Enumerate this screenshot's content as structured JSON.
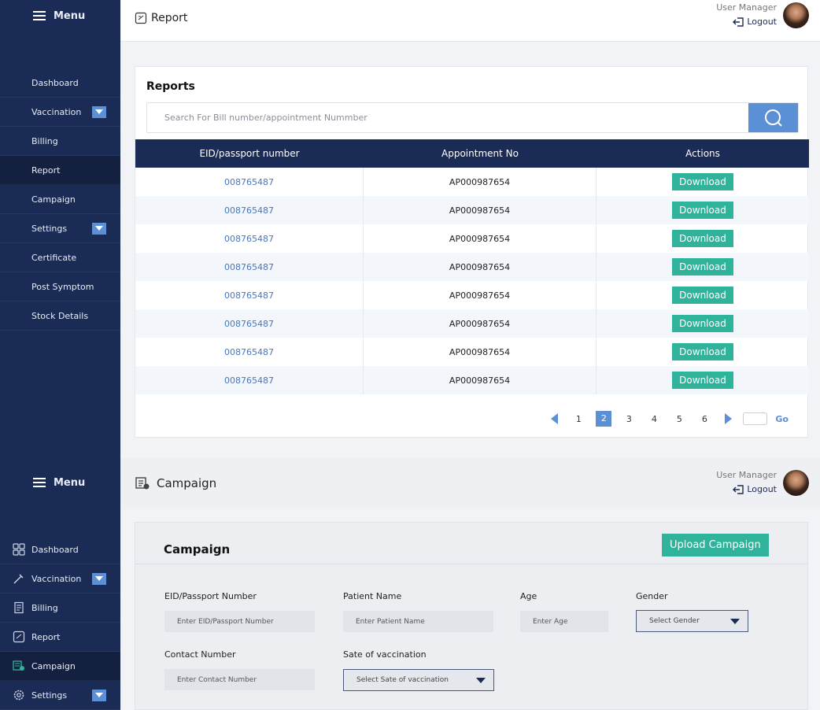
{
  "screen1": {
    "menu_label": "Menu",
    "sidebar": [
      {
        "label": "Dashboard",
        "dropdown": false,
        "active": false
      },
      {
        "label": "Vaccination",
        "dropdown": true,
        "active": false
      },
      {
        "label": "Billing",
        "dropdown": false,
        "active": false
      },
      {
        "label": "Report",
        "dropdown": false,
        "active": true
      },
      {
        "label": "Campaign",
        "dropdown": false,
        "active": false
      },
      {
        "label": "Settings",
        "dropdown": true,
        "active": false
      },
      {
        "label": "Certificate",
        "dropdown": false,
        "active": false
      },
      {
        "label": "Post Symptom",
        "dropdown": false,
        "active": false
      },
      {
        "label": "Stock Details",
        "dropdown": false,
        "active": false
      }
    ],
    "header": {
      "title": "Report",
      "user": "User Manager",
      "logout": "Logout"
    },
    "reports": {
      "title": "Reports",
      "search_placeholder": "Search For Bill number/appointment Nummber",
      "columns": [
        "EID/passport number",
        "Appointment No",
        "Actions"
      ],
      "rows": [
        {
          "eid": "008765487",
          "appointment": "AP000987654",
          "action": "Download"
        },
        {
          "eid": "008765487",
          "appointment": "AP000987654",
          "action": "Download"
        },
        {
          "eid": "008765487",
          "appointment": "AP000987654",
          "action": "Download"
        },
        {
          "eid": "008765487",
          "appointment": "AP000987654",
          "action": "Download"
        },
        {
          "eid": "008765487",
          "appointment": "AP000987654",
          "action": "Download"
        },
        {
          "eid": "008765487",
          "appointment": "AP000987654",
          "action": "Download"
        },
        {
          "eid": "008765487",
          "appointment": "AP000987654",
          "action": "Download"
        },
        {
          "eid": "008765487",
          "appointment": "AP000987654",
          "action": "Download"
        }
      ],
      "pagination": {
        "pages": [
          "1",
          "2",
          "3",
          "4",
          "5",
          "6"
        ],
        "current": "2",
        "go": "Go"
      }
    }
  },
  "screen2": {
    "menu_label": "Menu",
    "sidebar": [
      {
        "label": "Dashboard",
        "icon": "grid-icon",
        "dropdown": false,
        "active": false
      },
      {
        "label": "Vaccination",
        "icon": "syringe-icon",
        "dropdown": true,
        "active": false
      },
      {
        "label": "Billing",
        "icon": "bill-icon",
        "dropdown": false,
        "active": false
      },
      {
        "label": "Report",
        "icon": "report-icon",
        "dropdown": false,
        "active": false
      },
      {
        "label": "Campaign",
        "icon": "campaign-icon",
        "dropdown": false,
        "active": true
      },
      {
        "label": "Settings",
        "icon": "gear-icon",
        "dropdown": true,
        "active": false
      }
    ],
    "header": {
      "title": "Campaign",
      "user": "User Manager",
      "logout": "Logout"
    },
    "campaign": {
      "title": "Campaign",
      "upload_label": "Upload Campaign",
      "fields": {
        "eid_label": "EID/Passport Number",
        "eid_placeholder": "Enter EID/Passport Number",
        "name_label": "Patient Name",
        "name_placeholder": "Enter Patient Name",
        "age_label": "Age",
        "age_placeholder": "Enter Age",
        "gender_label": "Gender",
        "gender_value": "Select Gender",
        "contact_label": "Contact Number",
        "contact_placeholder": "Enter Contact Number",
        "date_label": "Sate of vaccination",
        "date_value": "Select Sate of vaccination"
      }
    }
  },
  "colors": {
    "navy": "#1a2b55",
    "accent_blue": "#5b8fd6",
    "download_green": "#2fb39b"
  }
}
